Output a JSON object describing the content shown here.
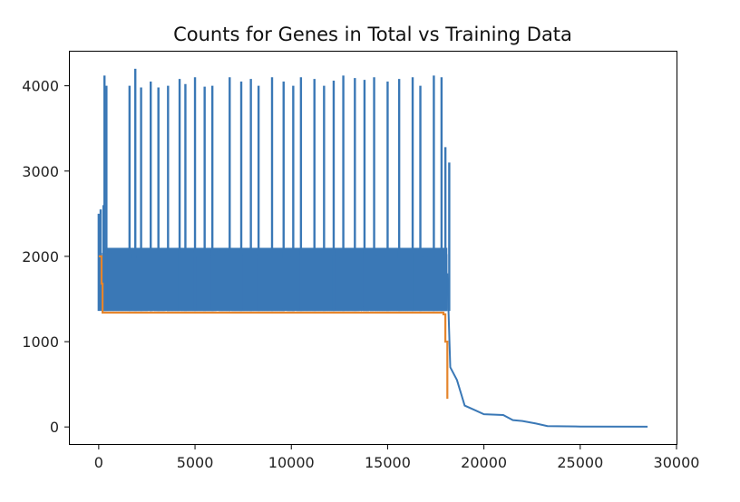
{
  "chart_data": {
    "type": "line",
    "title": "Counts for Genes in Total vs Training Data",
    "xlabel": "",
    "ylabel": "",
    "xlim": [
      -1500,
      30000
    ],
    "ylim": [
      -200,
      4400
    ],
    "xticks": [
      0,
      5000,
      10000,
      15000,
      20000,
      25000,
      30000
    ],
    "yticks": [
      0,
      1000,
      2000,
      3000,
      4000
    ],
    "grid": false,
    "legend": "none",
    "colors": {
      "series_1": "#3a78b6",
      "series_2": "#e5852c"
    },
    "series": [
      {
        "color": "#3a78b6",
        "band": {
          "x_start": 200,
          "x_end": 18100,
          "y_low": 1360,
          "y_high": 2100
        },
        "spikes": [
          [
            0,
            2500
          ],
          [
            100,
            2550
          ],
          [
            250,
            2600
          ],
          [
            300,
            4120
          ],
          [
            400,
            4000
          ],
          [
            1600,
            4000
          ],
          [
            1900,
            4200
          ],
          [
            2200,
            3980
          ],
          [
            2700,
            4050
          ],
          [
            3100,
            3980
          ],
          [
            3600,
            4000
          ],
          [
            4200,
            4080
          ],
          [
            4500,
            4020
          ],
          [
            5000,
            4100
          ],
          [
            5500,
            3990
          ],
          [
            5900,
            4000
          ],
          [
            6800,
            4100
          ],
          [
            7400,
            4050
          ],
          [
            7900,
            4080
          ],
          [
            8300,
            4000
          ],
          [
            9000,
            4100
          ],
          [
            9600,
            4050
          ],
          [
            10100,
            4000
          ],
          [
            10500,
            4100
          ],
          [
            11200,
            4080
          ],
          [
            11700,
            4000
          ],
          [
            12200,
            4060
          ],
          [
            12700,
            4120
          ],
          [
            13300,
            4090
          ],
          [
            13800,
            4070
          ],
          [
            14300,
            4100
          ],
          [
            15000,
            4050
          ],
          [
            15600,
            4080
          ],
          [
            16300,
            4100
          ],
          [
            16700,
            4000
          ],
          [
            17400,
            4120
          ],
          [
            17800,
            4100
          ],
          [
            18000,
            3280
          ],
          [
            18200,
            3100
          ]
        ],
        "tail": [
          [
            18100,
            1800
          ],
          [
            18250,
            700
          ],
          [
            18600,
            550
          ],
          [
            19000,
            250
          ],
          [
            19500,
            200
          ],
          [
            20000,
            150
          ],
          [
            21000,
            140
          ],
          [
            21500,
            80
          ],
          [
            22000,
            70
          ],
          [
            22700,
            40
          ],
          [
            23300,
            10
          ],
          [
            25000,
            5
          ],
          [
            28500,
            3
          ]
        ]
      },
      {
        "color": "#e5852c",
        "points": [
          [
            0,
            2000
          ],
          [
            150,
            2000
          ],
          [
            150,
            1680
          ],
          [
            200,
            1680
          ],
          [
            200,
            1340
          ],
          [
            10000,
            1340
          ],
          [
            17900,
            1340
          ],
          [
            17900,
            1320
          ],
          [
            18000,
            1320
          ],
          [
            18000,
            1000
          ],
          [
            18100,
            1000
          ],
          [
            18100,
            330
          ]
        ]
      }
    ]
  }
}
